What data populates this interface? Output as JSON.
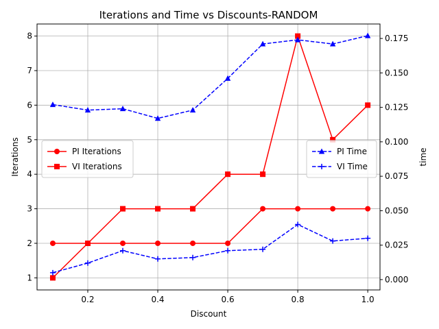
{
  "chart_data": {
    "type": "line",
    "title": "Iterations and Time vs Discounts-RANDOM",
    "xlabel": "Discount",
    "ylabel_left": "Iterations",
    "ylabel_right": "time",
    "x": [
      0.1,
      0.2,
      0.3,
      0.4,
      0.5,
      0.6,
      0.7,
      0.8,
      0.9,
      1.0
    ],
    "xlim": [
      0.055,
      1.035
    ],
    "x_ticks": [
      0.2,
      0.4,
      0.6,
      0.8,
      1.0
    ],
    "x_tick_labels": [
      "0.2",
      "0.4",
      "0.6",
      "0.8",
      "1.0"
    ],
    "ylim_left": [
      0.65,
      8.35
    ],
    "y_ticks_left": [
      1,
      2,
      3,
      4,
      5,
      6,
      7,
      8
    ],
    "y_tick_labels_left": [
      "1",
      "2",
      "3",
      "4",
      "5",
      "6",
      "7",
      "8"
    ],
    "ylim_right": [
      -0.0075,
      0.1855
    ],
    "y_ticks_right": [
      0.0,
      0.025,
      0.05,
      0.075,
      0.1,
      0.125,
      0.15,
      0.175
    ],
    "y_tick_labels_right": [
      "0.000",
      "0.025",
      "0.050",
      "0.075",
      "0.100",
      "0.125",
      "0.150",
      "0.175"
    ],
    "grid": true,
    "series_left": [
      {
        "name": "PI Iterations",
        "color": "#ff0000",
        "linestyle": "solid",
        "marker": "circle",
        "values": [
          2,
          2,
          2,
          2,
          2,
          2,
          3,
          3,
          3,
          3
        ]
      },
      {
        "name": "VI Iterations",
        "color": "#ff0000",
        "linestyle": "solid",
        "marker": "square",
        "values": [
          1,
          2,
          3,
          3,
          3,
          4,
          4,
          8,
          5,
          6
        ]
      }
    ],
    "series_right": [
      {
        "name": "PI Time",
        "color": "#0000ff",
        "linestyle": "dashed",
        "marker": "triangle",
        "values": [
          0.127,
          0.123,
          0.124,
          0.117,
          0.123,
          0.146,
          0.171,
          0.174,
          0.171,
          0.177
        ]
      },
      {
        "name": "VI Time",
        "color": "#0000ff",
        "linestyle": "dashed",
        "marker": "plus",
        "values": [
          0.005,
          0.012,
          0.021,
          0.015,
          0.016,
          0.021,
          0.022,
          0.04,
          0.028,
          0.03
        ]
      }
    ],
    "legend_left_placement": "center-left",
    "legend_right_placement": "center-right"
  }
}
